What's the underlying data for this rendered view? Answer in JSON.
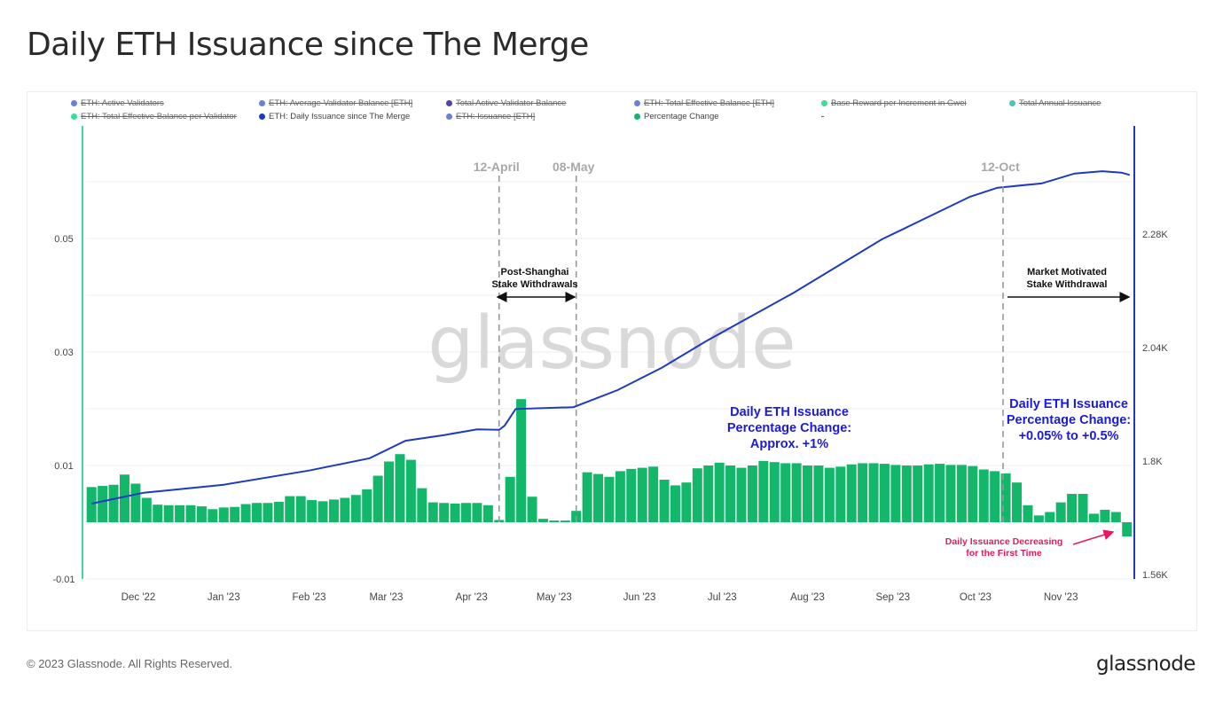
{
  "title": "Daily ETH Issuance since The Merge",
  "footer": {
    "copyright": "© 2023 Glassnode. All Rights Reserved.",
    "logo": "glassnode"
  },
  "watermark": "glassnode",
  "legend": [
    {
      "label": "ETH: Active Validators",
      "color": "#6b7fdc",
      "active": false
    },
    {
      "label": "ETH: Average Validator Balance [ETH]",
      "color": "#6b7fdc",
      "active": false
    },
    {
      "label": "Total Active Validator Balance",
      "color": "#5a3fb3",
      "active": false
    },
    {
      "label": "ETH: Total Effective Balance [ETH]",
      "color": "#6b7fdc",
      "active": false
    },
    {
      "label": "Base Reward per Increment in Gwei",
      "color": "#3ddc97",
      "active": false
    },
    {
      "label": "Total Annual Issuance",
      "color": "#4fc3b8",
      "active": false
    },
    {
      "label": "ETH: Total Effective Balance per Validator",
      "color": "#3ddc97",
      "active": false
    },
    {
      "label": "ETH: Daily Issuance since The Merge",
      "color": "#1e3bbf",
      "active": true
    },
    {
      "label": "ETH: Issuance [ETH]",
      "color": "#6b7fdc",
      "active": false
    },
    {
      "label": "Percentage Change",
      "color": "#12b76a",
      "active": true
    },
    {
      "label": "-",
      "color": "",
      "active": false
    }
  ],
  "chart_data": {
    "type": "bar+line",
    "x_ticks": [
      "Dec '22",
      "Jan '23",
      "Feb '23",
      "Mar '23",
      "Apr '23",
      "May '23",
      "Jun '23",
      "Jul '23",
      "Aug '23",
      "Sep '23",
      "Oct '23",
      "Nov '23"
    ],
    "x_tick_dates": [
      "2022-12-01",
      "2023-01-01",
      "2023-02-01",
      "2023-03-01",
      "2023-04-01",
      "2023-05-01",
      "2023-06-01",
      "2023-07-01",
      "2023-08-01",
      "2023-09-01",
      "2023-10-01",
      "2023-11-01"
    ],
    "y_left": {
      "ticks": [
        "0.05",
        "0.03",
        "0.01",
        "-0.01"
      ],
      "tick_values": [
        0.05,
        0.03,
        0.01,
        -0.01
      ],
      "range": [
        -0.01,
        0.06
      ]
    },
    "y_right": {
      "ticks": [
        "2.28K",
        "2.04K",
        "1.8K",
        "1.56K"
      ],
      "tick_values": [
        2.28,
        2.04,
        1.8,
        1.56
      ],
      "range": [
        1.56,
        2.43
      ],
      "unit": "K"
    },
    "grid": true,
    "series": [
      {
        "name": "Percentage Change",
        "type": "bar",
        "axis": "left",
        "color": "#12b76a",
        "x": [
          "2022-11-14",
          "2022-11-18",
          "2022-11-22",
          "2022-11-26",
          "2022-11-30",
          "2022-12-04",
          "2022-12-08",
          "2022-12-12",
          "2022-12-16",
          "2022-12-20",
          "2022-12-24",
          "2022-12-28",
          "2023-01-01",
          "2023-01-05",
          "2023-01-09",
          "2023-01-13",
          "2023-01-17",
          "2023-01-21",
          "2023-01-25",
          "2023-01-29",
          "2023-02-02",
          "2023-02-06",
          "2023-02-10",
          "2023-02-14",
          "2023-02-18",
          "2023-02-22",
          "2023-02-26",
          "2023-03-02",
          "2023-03-06",
          "2023-03-10",
          "2023-03-14",
          "2023-03-18",
          "2023-03-22",
          "2023-03-26",
          "2023-03-30",
          "2023-04-03",
          "2023-04-07",
          "2023-04-11",
          "2023-04-15",
          "2023-04-19",
          "2023-04-23",
          "2023-04-27",
          "2023-05-01",
          "2023-05-05",
          "2023-05-09",
          "2023-05-13",
          "2023-05-17",
          "2023-05-21",
          "2023-05-25",
          "2023-05-29",
          "2023-06-02",
          "2023-06-06",
          "2023-06-10",
          "2023-06-14",
          "2023-06-18",
          "2023-06-22",
          "2023-06-26",
          "2023-06-30",
          "2023-07-04",
          "2023-07-08",
          "2023-07-12",
          "2023-07-16",
          "2023-07-20",
          "2023-07-24",
          "2023-07-28",
          "2023-08-01",
          "2023-08-05",
          "2023-08-09",
          "2023-08-13",
          "2023-08-17",
          "2023-08-21",
          "2023-08-25",
          "2023-08-29",
          "2023-09-02",
          "2023-09-06",
          "2023-09-10",
          "2023-09-14",
          "2023-09-18",
          "2023-09-22",
          "2023-09-26",
          "2023-09-30",
          "2023-10-04",
          "2023-10-08",
          "2023-10-12",
          "2023-10-16",
          "2023-10-20",
          "2023-10-24",
          "2023-10-28",
          "2023-11-01",
          "2023-11-05",
          "2023-11-09",
          "2023-11-13",
          "2023-11-17",
          "2023-11-21",
          "2023-11-25"
        ],
        "values": [
          0.0062,
          0.0064,
          0.0066,
          0.0084,
          0.0068,
          0.0043,
          0.0031,
          0.003,
          0.003,
          0.003,
          0.0028,
          0.0023,
          0.0026,
          0.0027,
          0.0032,
          0.0034,
          0.0034,
          0.0036,
          0.0046,
          0.0046,
          0.0039,
          0.0037,
          0.004,
          0.0043,
          0.0048,
          0.0058,
          0.0082,
          0.0107,
          0.012,
          0.011,
          0.006,
          0.0035,
          0.0034,
          0.0033,
          0.0034,
          0.0034,
          0.003,
          0.0004,
          0.008,
          0.0217,
          0.0045,
          0.0006,
          0.0003,
          0.0003,
          0.002,
          0.0088,
          0.0085,
          0.008,
          0.009,
          0.0094,
          0.0096,
          0.0098,
          0.0075,
          0.0065,
          0.007,
          0.0095,
          0.01,
          0.0105,
          0.01,
          0.0096,
          0.01,
          0.0108,
          0.0106,
          0.0104,
          0.0104,
          0.01,
          0.01,
          0.0096,
          0.0098,
          0.0102,
          0.0104,
          0.0104,
          0.0103,
          0.0101,
          0.01,
          0.01,
          0.0102,
          0.0103,
          0.0101,
          0.0101,
          0.0099,
          0.0093,
          0.009,
          0.0086,
          0.007,
          0.003,
          0.0012,
          0.0018,
          0.0035,
          0.005,
          0.005,
          0.0015,
          0.0022,
          0.0018,
          -0.0025
        ]
      },
      {
        "name": "ETH: Daily Issuance since The Merge",
        "type": "line",
        "axis": "right",
        "color": "#1e3bbf",
        "x": [
          "2022-11-14",
          "2022-12-03",
          "2023-01-01",
          "2023-02-01",
          "2023-02-23",
          "2023-03-08",
          "2023-03-22",
          "2023-04-03",
          "2023-04-11",
          "2023-04-13",
          "2023-04-17",
          "2023-05-08",
          "2023-05-24",
          "2023-06-09",
          "2023-06-25",
          "2023-07-27",
          "2023-08-28",
          "2023-09-29",
          "2023-10-09",
          "2023-10-25",
          "2023-11-06",
          "2023-11-16",
          "2023-11-23",
          "2023-11-26"
        ],
        "values": [
          1.71,
          1.733,
          1.75,
          1.78,
          1.806,
          1.843,
          1.855,
          1.867,
          1.866,
          1.875,
          1.91,
          1.914,
          1.95,
          1.997,
          2.053,
          2.156,
          2.269,
          2.359,
          2.378,
          2.387,
          2.408,
          2.413,
          2.41,
          2.405
        ]
      }
    ],
    "annotations": {
      "vlines": [
        {
          "label": "12-April",
          "date": "2023-04-11"
        },
        {
          "label": "08-May",
          "date": "2023-05-09"
        },
        {
          "label": "12-Oct",
          "date": "2023-10-11"
        }
      ],
      "shanghai": "Post-Shanghai\nStake Withdrawals",
      "market": "Market Motivated\nStake Withdrawal",
      "mid_note": [
        "Daily ETH Issuance",
        "Percentage Change:",
        "Approx. +1%"
      ],
      "right_note": [
        "Daily ETH Issuance",
        "Percentage Change:",
        "+0.05% to +0.5%"
      ],
      "decreasing": [
        "Daily Issuance Decreasing",
        "for the First Time"
      ],
      "note_color": "#1a1adb",
      "alert_color": "#e8185a"
    }
  }
}
